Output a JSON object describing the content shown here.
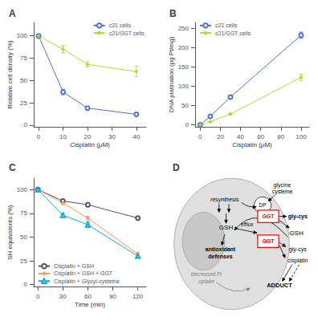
{
  "chart_data": [
    {
      "type": "line",
      "title": "A",
      "x": [
        0,
        10,
        20,
        40
      ],
      "series": [
        {
          "name": "c21 cells",
          "values": [
            100,
            37,
            19,
            12
          ],
          "yerr": [
            2,
            3,
            2,
            2
          ],
          "marker": "open circle"
        },
        {
          "name": "c21/GGT cells",
          "values": [
            100,
            85,
            68,
            60
          ],
          "yerr": [
            2,
            4,
            3,
            6
          ],
          "marker": "diamond"
        }
      ],
      "xlabel": "Cisplatin (μM)",
      "ylabel": "Relative cell density (%)",
      "xlim": [
        -2,
        44
      ],
      "ylim": [
        -2,
        115
      ],
      "xticks": [
        0,
        10,
        20,
        30,
        40
      ],
      "yticks": [
        0,
        25,
        50,
        75,
        100
      ],
      "grid": false,
      "legend": "upper right"
    },
    {
      "type": "line",
      "title": "B",
      "x": [
        0,
        10,
        30,
        100
      ],
      "series": [
        {
          "name": "c21 cells",
          "values": [
            0,
            22,
            72,
            232
          ],
          "yerr": [
            1,
            3,
            4,
            8
          ],
          "marker": "open circle"
        },
        {
          "name": "c21/GGT cells",
          "values": [
            0,
            8,
            28,
            123
          ],
          "yerr": [
            1,
            1,
            2,
            8
          ],
          "marker": "diamond"
        }
      ],
      "xlabel": "Cisplatin (μM)",
      "ylabel": "DNA platination (pg Pt/mg)",
      "xlim": [
        -5,
        108
      ],
      "ylim": [
        -5,
        265
      ],
      "xticks": [
        0,
        20,
        40,
        60,
        80,
        100
      ],
      "yticks": [
        0,
        50,
        100,
        150,
        200,
        250
      ],
      "grid": false,
      "legend": "upper left"
    },
    {
      "type": "line",
      "title": "C",
      "x": [
        0,
        30,
        60,
        120
      ],
      "series": [
        {
          "name": "Cisplatin + GSH",
          "values": [
            100,
            88,
            84,
            70
          ],
          "yerr": [
            1,
            2,
            2,
            2
          ],
          "marker": "open circle"
        },
        {
          "name": "Cisplatin + GSH + GGT",
          "values": [
            100,
            86,
            70,
            32
          ],
          "yerr": [
            1,
            2,
            2,
            2
          ],
          "marker": "diamond"
        },
        {
          "name": "Cisplatin + Glycyl-cysteine",
          "values": [
            100,
            73,
            63,
            30
          ],
          "yerr": [
            1,
            2,
            3,
            2
          ],
          "marker": "open triangle"
        }
      ],
      "xlabel": "Time (min)",
      "ylabel": "SH equivalents (%)",
      "xlim": [
        -5,
        130
      ],
      "ylim": [
        -2,
        112
      ],
      "xticks": [
        0,
        30,
        60,
        90,
        120
      ],
      "yticks": [
        0,
        25,
        50,
        75,
        100
      ],
      "grid": false,
      "legend": "lower left"
    },
    {
      "type": "diagram",
      "title": "D",
      "annotations": [
        {
          "text": "glycine"
        },
        {
          "text": "cysteine"
        },
        {
          "text": "DP"
        },
        {
          "text": "resynthesis"
        },
        {
          "text": "GSH"
        },
        {
          "text": "efflux"
        },
        {
          "text": "antioxidant"
        },
        {
          "text": "defenses"
        },
        {
          "text": "GGT",
          "color": "red"
        },
        {
          "text": "GGT",
          "color": "red"
        },
        {
          "text": "gly-cys"
        },
        {
          "text": "GSH"
        },
        {
          "text": "gly-cys"
        },
        {
          "text": "cisplatin"
        },
        {
          "text": "ADDUCT"
        },
        {
          "text": "decreased Pt",
          "color": "gray"
        },
        {
          "text": "uptake",
          "color": "gray"
        }
      ]
    }
  ]
}
